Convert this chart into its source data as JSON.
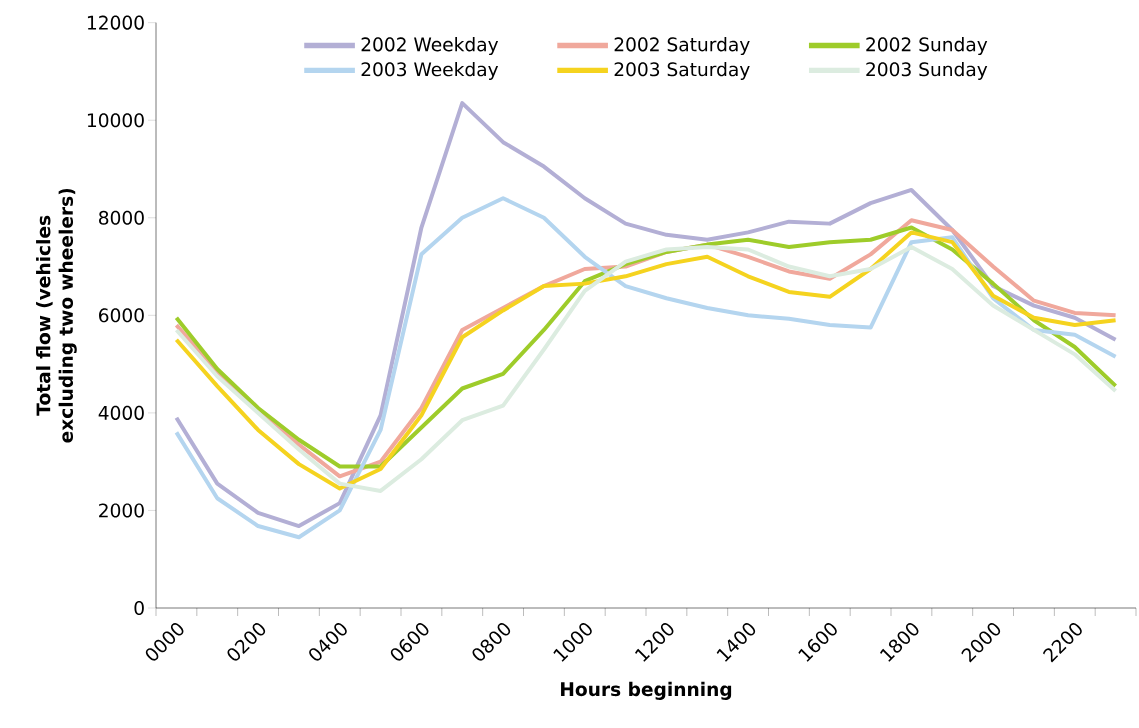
{
  "chart_data": {
    "type": "line",
    "xlabel": "Hours beginning",
    "ylabel": "Total flow (vehicles excluding two wheelers)",
    "categories": [
      "0000",
      null,
      "0200",
      null,
      "0400",
      null,
      "0600",
      null,
      "0800",
      null,
      "1000",
      null,
      "1200",
      null,
      "1400",
      null,
      "1600",
      null,
      "1800",
      null,
      "2000",
      null,
      "2200",
      null
    ],
    "ylim": [
      0,
      12000
    ],
    "yticks": [
      0,
      2000,
      4000,
      6000,
      8000,
      10000,
      12000
    ],
    "grid": false,
    "legend": "top",
    "marker": "none",
    "line_style": "solid",
    "series": [
      {
        "name": "2002 Weekday",
        "color": "#b3afd5",
        "values": [
          3900,
          2550,
          1950,
          1680,
          2150,
          3950,
          7800,
          10350,
          9550,
          9050,
          8400,
          7880,
          7650,
          7550,
          7700,
          7920,
          7880,
          8300,
          8570,
          7750,
          6600,
          6200,
          5950,
          5500
        ]
      },
      {
        "name": "2002 Saturday",
        "color": "#f0a89c",
        "values": [
          5800,
          4850,
          4050,
          3350,
          2700,
          3000,
          4100,
          5700,
          6150,
          6600,
          6950,
          7000,
          7300,
          7450,
          7200,
          6900,
          6750,
          7250,
          7950,
          7750,
          7000,
          6300,
          6050,
          6000
        ]
      },
      {
        "name": "2002 Sunday",
        "color": "#9ecc2a",
        "values": [
          5950,
          4900,
          4100,
          3450,
          2900,
          2900,
          3700,
          4500,
          4800,
          5700,
          6700,
          7050,
          7300,
          7450,
          7550,
          7400,
          7500,
          7550,
          7800,
          7350,
          6650,
          5900,
          5350,
          4550
        ]
      },
      {
        "name": "2003 Weekday",
        "color": "#b4d5ef",
        "values": [
          3600,
          2250,
          1680,
          1450,
          2000,
          3650,
          7250,
          8000,
          8400,
          8000,
          7200,
          6600,
          6350,
          6150,
          6000,
          5930,
          5800,
          5750,
          7500,
          7600,
          6350,
          5700,
          5600,
          5150
        ]
      },
      {
        "name": "2003 Saturday",
        "color": "#f5d31f",
        "values": [
          5500,
          4550,
          3650,
          2950,
          2450,
          2850,
          3950,
          5550,
          6100,
          6600,
          6650,
          6800,
          7050,
          7200,
          6800,
          6480,
          6380,
          6950,
          7700,
          7500,
          6400,
          5950,
          5800,
          5900
        ]
      },
      {
        "name": "2003 Sunday",
        "color": "#dcece0",
        "values": [
          5700,
          4750,
          4000,
          3250,
          2550,
          2400,
          3050,
          3850,
          4150,
          5300,
          6500,
          7100,
          7350,
          7400,
          7350,
          7000,
          6800,
          6950,
          7400,
          6950,
          6200,
          5700,
          5200,
          4450
        ]
      }
    ]
  }
}
